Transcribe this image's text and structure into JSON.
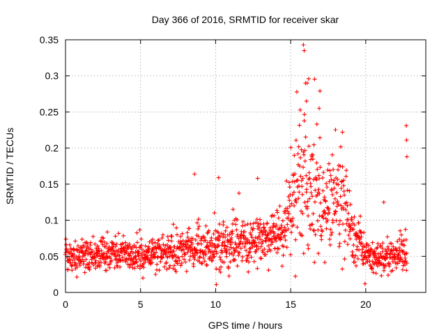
{
  "chart_data": {
    "type": "scatter",
    "title": "Day 366 of 2016, SRMTID for receiver skar",
    "xlabel": "GPS time / hours",
    "ylabel": "SRMTID / TECUs",
    "xlim": [
      0,
      24
    ],
    "ylim": [
      0,
      0.35
    ],
    "x_ticks": [
      "0",
      "5",
      "10",
      "15",
      "20"
    ],
    "y_ticks": [
      "0",
      "0.05",
      "0.1",
      "0.15",
      "0.2",
      "0.25",
      "0.3",
      "0.35"
    ],
    "x_tick_values": [
      0,
      5,
      10,
      15,
      20
    ],
    "y_tick_values": [
      0,
      0.05,
      0.1,
      0.15,
      0.2,
      0.25,
      0.3,
      0.35
    ],
    "grid": true,
    "marker": "+",
    "color": "#ff0000",
    "series": [
      {
        "name": "SRMTID",
        "profile": {
          "x_range": [
            0,
            22.75
          ],
          "sample_interval_hours": 0.0167,
          "trend_hours": [
            0,
            2,
            4,
            6,
            8,
            10,
            12,
            13.5,
            14.5,
            15,
            15.5,
            16,
            16.5,
            17,
            17.5,
            18,
            18.5,
            19,
            19.5,
            20,
            21,
            22,
            22.75
          ],
          "trend_values": [
            0.048,
            0.05,
            0.052,
            0.053,
            0.058,
            0.064,
            0.068,
            0.072,
            0.08,
            0.12,
            0.15,
            0.17,
            0.14,
            0.125,
            0.115,
            0.13,
            0.125,
            0.09,
            0.07,
            0.05,
            0.045,
            0.052,
            0.058
          ],
          "spread_values": [
            0.012,
            0.013,
            0.013,
            0.014,
            0.016,
            0.018,
            0.019,
            0.02,
            0.022,
            0.035,
            0.05,
            0.06,
            0.05,
            0.04,
            0.035,
            0.04,
            0.038,
            0.025,
            0.02,
            0.014,
            0.012,
            0.014,
            0.016
          ]
        },
        "notable_points": [
          {
            "x": 15.85,
            "y": 0.343
          },
          {
            "x": 15.9,
            "y": 0.335
          },
          {
            "x": 16.2,
            "y": 0.296
          },
          {
            "x": 16.1,
            "y": 0.29
          },
          {
            "x": 16.95,
            "y": 0.279
          },
          {
            "x": 16.05,
            "y": 0.265
          },
          {
            "x": 16.9,
            "y": 0.255
          },
          {
            "x": 18.45,
            "y": 0.222
          },
          {
            "x": 22.7,
            "y": 0.231
          },
          {
            "x": 22.72,
            "y": 0.211
          },
          {
            "x": 22.74,
            "y": 0.188
          },
          {
            "x": 8.6,
            "y": 0.164
          },
          {
            "x": 12.8,
            "y": 0.158
          },
          {
            "x": 10.2,
            "y": 0.159
          },
          {
            "x": 10.05,
            "y": 0.011
          },
          {
            "x": 19.95,
            "y": 0.012
          },
          {
            "x": 21.2,
            "y": 0.125
          }
        ]
      }
    ]
  }
}
